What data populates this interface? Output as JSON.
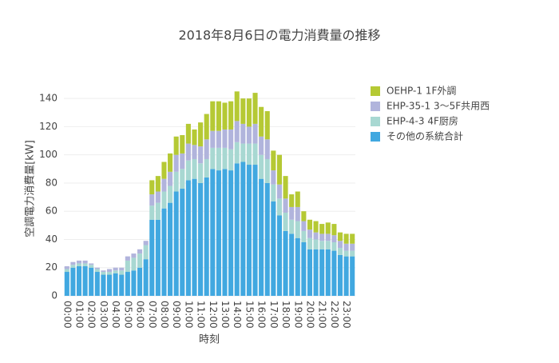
{
  "chart_data": {
    "type": "stacked_bar",
    "title": "2018年8月6日の電力消費量の推移",
    "xlabel": "時刻",
    "ylabel": "空調電力消費量[kW]",
    "categories": [
      "00:00",
      null,
      "01:00",
      null,
      "02:00",
      null,
      "03:00",
      null,
      "04:00",
      null,
      "05:00",
      null,
      "06:00",
      null,
      "07:00",
      null,
      "08:00",
      null,
      "09:00",
      null,
      "10:00",
      null,
      "11:00",
      null,
      "12:00",
      null,
      "13:00",
      null,
      "14:00",
      null,
      "15:00",
      null,
      "16:00",
      null,
      "17:00",
      null,
      "18:00",
      null,
      "19:00",
      null,
      "20:00",
      null,
      "21:00",
      null,
      "22:00",
      null,
      "23:00",
      null
    ],
    "series": [
      {
        "name": "その他の系統合計",
        "color": "#41a8e0",
        "values": [
          17,
          20,
          21,
          21,
          20,
          17,
          15,
          15,
          16,
          15,
          17,
          18,
          20,
          26,
          54,
          54,
          62,
          66,
          74,
          76,
          82,
          83,
          80,
          84,
          90,
          89,
          90,
          89,
          94,
          95,
          93,
          93,
          83,
          80,
          67,
          57,
          46,
          44,
          41,
          38,
          33,
          33,
          33,
          33,
          32,
          29,
          28,
          28
        ]
      },
      {
        "name": "EHP-4-3 4F厨房",
        "color": "#a8d8d2",
        "values": [
          2,
          2,
          2,
          2,
          2,
          2,
          2,
          2,
          2,
          3,
          8,
          9,
          10,
          10,
          10,
          12,
          12,
          12,
          14,
          14,
          14,
          14,
          14,
          13,
          15,
          16,
          15,
          15,
          15,
          13,
          15,
          15,
          17,
          17,
          12,
          12,
          13,
          10,
          12,
          8,
          8,
          7,
          6,
          6,
          6,
          5,
          4,
          4
        ]
      },
      {
        "name": "EHP-35-1 3〜5F共用西",
        "color": "#b1b4dc",
        "values": [
          2,
          2,
          2,
          2,
          1,
          1,
          1,
          2,
          2,
          2,
          3,
          3,
          3,
          3,
          8,
          8,
          9,
          10,
          12,
          11,
          12,
          10,
          12,
          14,
          12,
          12,
          13,
          14,
          15,
          14,
          12,
          14,
          13,
          14,
          10,
          10,
          10,
          9,
          10,
          7,
          6,
          5,
          5,
          5,
          5,
          5,
          5,
          5
        ]
      },
      {
        "name": "OEHP-1 1F外調",
        "color": "#b5c934",
        "values": [
          0,
          0,
          0,
          0,
          0,
          0,
          0,
          0,
          0,
          0,
          0,
          0,
          0,
          0,
          10,
          11,
          12,
          13,
          13,
          13,
          14,
          11,
          17,
          18,
          21,
          21,
          19,
          20,
          21,
          18,
          20,
          22,
          21,
          20,
          14,
          21,
          16,
          9,
          11,
          7,
          7,
          8,
          7,
          8,
          8,
          6,
          7,
          7
        ]
      }
    ],
    "ylim": [
      0,
      152
    ],
    "yticks": [
      0,
      20,
      40,
      60,
      80,
      100,
      120,
      140
    ],
    "grid": true
  }
}
